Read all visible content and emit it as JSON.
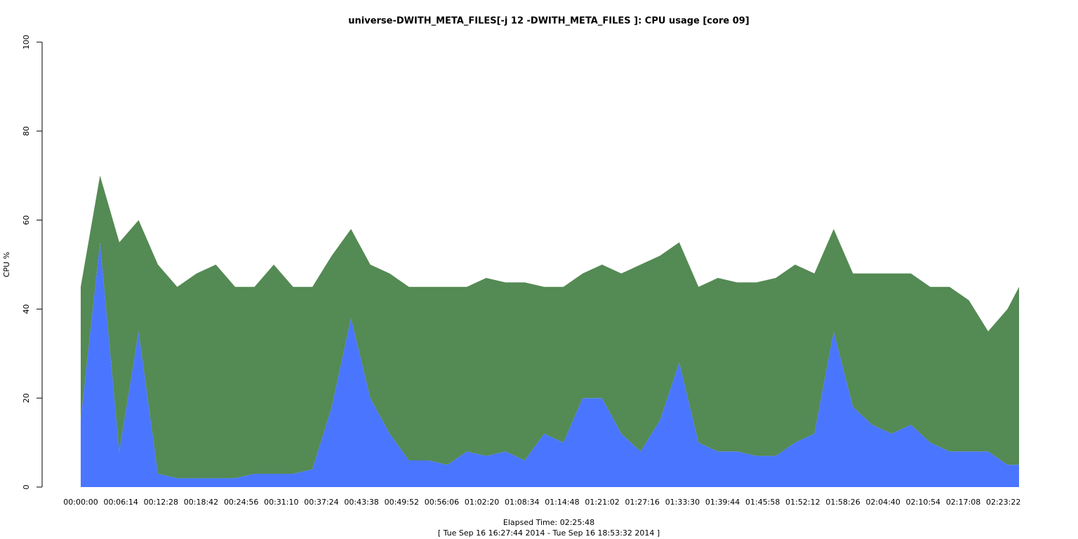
{
  "chart_data": {
    "type": "stacked-area",
    "title": "universe-DWITH_META_FILES[-j 12 -DWITH_META_FILES ]: CPU usage [core 09]",
    "x_label": "Elapsed Time: 02:25:48",
    "subtitle": "[ Tue Sep 16 16:27:44 2014 - Tue Sep 16 18:53:32 2014 ]",
    "y_label": "CPU %",
    "x": [
      0,
      180,
      360,
      540,
      720,
      900,
      1080,
      1260,
      1440,
      1620,
      1800,
      1980,
      2160,
      2340,
      2520,
      2700,
      2880,
      3060,
      3240,
      3420,
      3600,
      3780,
      3960,
      4140,
      4320,
      4500,
      4680,
      4860,
      5040,
      5220,
      5400,
      5580,
      5760,
      5940,
      6120,
      6300,
      6480,
      6660,
      6840,
      7020,
      7200,
      7380,
      7560,
      7740,
      7920,
      8100,
      8280,
      8460,
      8640,
      8748
    ],
    "series": [
      {
        "color": "#4a76ff",
        "values": [
          15,
          55,
          8,
          35,
          3,
          2,
          2,
          2,
          2,
          3,
          3,
          3,
          4,
          18,
          38,
          20,
          12,
          6,
          6,
          5,
          8,
          7,
          8,
          6,
          12,
          10,
          20,
          20,
          12,
          8,
          15,
          28,
          10,
          8,
          8,
          7,
          7,
          10,
          12,
          35,
          18,
          14,
          12,
          14,
          10,
          8,
          8,
          8,
          5,
          5
        ]
      },
      {
        "color": "#548a54",
        "values": [
          30,
          15,
          47,
          25,
          47,
          43,
          46,
          48,
          43,
          42,
          47,
          42,
          41,
          34,
          20,
          30,
          36,
          39,
          39,
          40,
          37,
          40,
          38,
          40,
          33,
          35,
          28,
          30,
          36,
          42,
          37,
          27,
          35,
          39,
          38,
          39,
          40,
          40,
          36,
          23,
          30,
          34,
          36,
          34,
          35,
          37,
          34,
          27,
          35,
          40
        ]
      }
    ],
    "xlim": [
      0,
      8748
    ],
    "xticks": [
      {
        "value": 0,
        "label": "00:00:00"
      },
      {
        "value": 374,
        "label": "00:06:14"
      },
      {
        "value": 748,
        "label": "00:12:28"
      },
      {
        "value": 1122,
        "label": "00:18:42"
      },
      {
        "value": 1496,
        "label": "00:24:56"
      },
      {
        "value": 1870,
        "label": "00:31:10"
      },
      {
        "value": 2244,
        "label": "00:37:24"
      },
      {
        "value": 2618,
        "label": "00:43:38"
      },
      {
        "value": 2992,
        "label": "00:49:52"
      },
      {
        "value": 3366,
        "label": "00:56:06"
      },
      {
        "value": 3740,
        "label": "01:02:20"
      },
      {
        "value": 4114,
        "label": "01:08:34"
      },
      {
        "value": 4488,
        "label": "01:14:48"
      },
      {
        "value": 4862,
        "label": "01:21:02"
      },
      {
        "value": 5236,
        "label": "01:27:16"
      },
      {
        "value": 5610,
        "label": "01:33:30"
      },
      {
        "value": 5984,
        "label": "01:39:44"
      },
      {
        "value": 6358,
        "label": "01:45:58"
      },
      {
        "value": 6732,
        "label": "01:52:12"
      },
      {
        "value": 7106,
        "label": "01:58:26"
      },
      {
        "value": 7480,
        "label": "02:04:40"
      },
      {
        "value": 7854,
        "label": "02:10:54"
      },
      {
        "value": 8228,
        "label": "02:17:08"
      },
      {
        "value": 8602,
        "label": "02:23:22"
      }
    ],
    "ylim": [
      0,
      100
    ],
    "yticks": [
      0,
      20,
      40,
      60,
      80,
      100
    ]
  }
}
